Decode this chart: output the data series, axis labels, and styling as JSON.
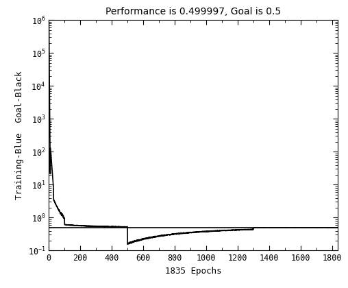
{
  "title": "Performance is 0.499997, Goal is 0.5",
  "xlabel": "1835 Epochs",
  "ylabel": "Training-Blue  Goal-Black",
  "xlim": [
    0,
    1835
  ],
  "ylim_low": 0.1,
  "ylim_high": 1000000.0,
  "goal_value": 0.5,
  "final_performance": 0.499997,
  "total_epochs": 1835,
  "xticks": [
    0,
    200,
    400,
    600,
    800,
    1000,
    1200,
    1400,
    1600,
    1800
  ],
  "training_color": "#000000",
  "goal_color": "#000000",
  "background_color": "#ffffff",
  "title_fontsize": 10,
  "label_fontsize": 9,
  "tick_fontsize": 8.5
}
